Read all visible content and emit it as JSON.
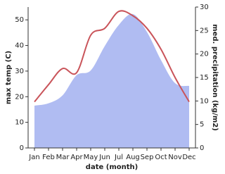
{
  "chart_data": {
    "type": "area-line",
    "x_label": "date (month)",
    "y_label": "max temp (C)",
    "y2_label": "med. precipitation (kg/m2)",
    "categories": [
      "Jan",
      "Feb",
      "Mar",
      "Apr",
      "May",
      "Jun",
      "Jul",
      "Aug",
      "Sep",
      "Oct",
      "Nov",
      "Dec"
    ],
    "series": [
      {
        "name": "med. precipitation",
        "color": "#b0bcf2",
        "axis": "y2",
        "kind": "area",
        "values": [
          9,
          9.5,
          11.2,
          15.5,
          16.5,
          21.7,
          26.2,
          28.5,
          24.7,
          18.7,
          13.8,
          13.2
        ]
      },
      {
        "name": "max temp",
        "color": "#c9545a",
        "axis": "y",
        "kind": "line",
        "values": [
          18,
          24.7,
          31,
          29.4,
          44,
          46.7,
          53.3,
          51.6,
          46.7,
          38.5,
          27.5,
          18
        ]
      }
    ],
    "ylim": [
      0,
      55
    ],
    "yticks": [
      0,
      10,
      20,
      30,
      40,
      50
    ],
    "y2lim": [
      0,
      30
    ],
    "y2ticks": [
      0,
      5,
      10,
      15,
      20,
      25,
      30
    ]
  }
}
